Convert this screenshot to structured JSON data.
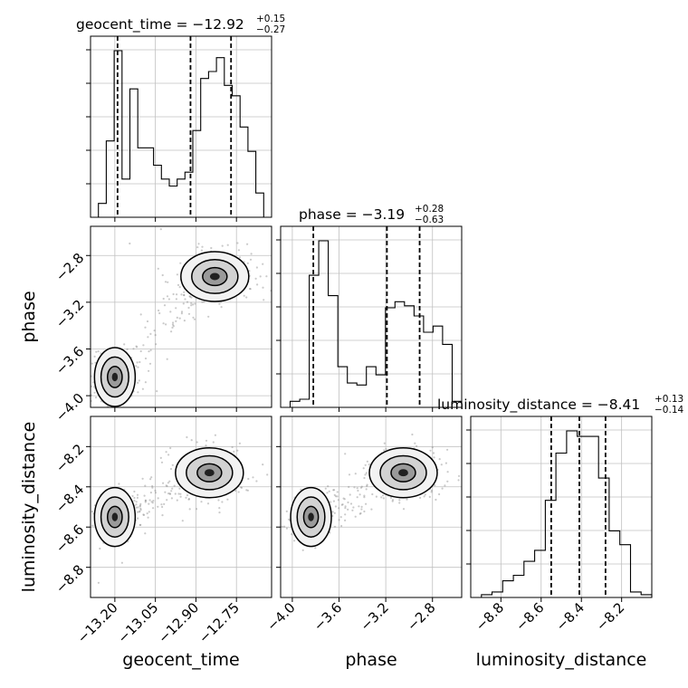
{
  "chart_data": {
    "type": "corner",
    "parameters": [
      "geocent_time",
      "phase",
      "luminosity_distance"
    ],
    "axes": {
      "geocent_time": {
        "range": [
          -13.29,
          -12.62
        ],
        "ticks": [
          -13.2,
          -13.05,
          -12.9,
          -12.75
        ],
        "tick_labels": [
          "−13.20",
          "−13.05",
          "−12.90",
          "−12.75"
        ]
      },
      "phase": {
        "range": [
          -4.1,
          -2.55
        ],
        "ticks": [
          -4.0,
          -3.6,
          -3.2,
          -2.8
        ],
        "tick_labels": [
          "−4.0",
          "−3.6",
          "−3.2",
          "−2.8"
        ]
      },
      "luminosity_distance": {
        "range": [
          -8.95,
          -8.05
        ],
        "ticks": [
          -8.8,
          -8.6,
          -8.4,
          -8.2
        ],
        "tick_labels": [
          "−8.8",
          "−8.6",
          "−8.4",
          "−8.2"
        ]
      }
    },
    "titles": [
      {
        "param": "geocent_time",
        "main": "geocent_time = −12.92",
        "sup": "+0.15",
        "sub": "−0.27"
      },
      {
        "param": "phase",
        "main": "phase = −3.19",
        "sup": "+0.28",
        "sub": "−0.63"
      },
      {
        "param": "luminosity_distance",
        "main": "luminosity_distance = −8.41",
        "sup": "+0.13",
        "sub": "−0.14"
      }
    ],
    "quantiles": {
      "geocent_time": [
        -13.19,
        -12.92,
        -12.77
      ],
      "phase": [
        -3.82,
        -3.19,
        -2.91
      ],
      "luminosity_distance": [
        -8.55,
        -8.41,
        -8.28
      ]
    },
    "histograms": {
      "geocent_time": {
        "range": [
          -13.29,
          -12.62
        ],
        "counts": [
          0,
          4,
          22,
          48,
          11,
          37,
          20,
          20,
          15,
          11,
          9,
          11,
          13,
          25,
          40,
          42,
          46,
          38,
          35,
          26,
          19,
          7,
          0
        ]
      },
      "phase": {
        "range": [
          -4.1,
          -2.55
        ],
        "counts": [
          0,
          3,
          4,
          65,
          82,
          55,
          20,
          12,
          11,
          20,
          16,
          49,
          52,
          50,
          45,
          37,
          40,
          31,
          3
        ]
      },
      "luminosity_distance": {
        "range": [
          -8.95,
          -8.05
        ],
        "counts": [
          0,
          1,
          2,
          6,
          8,
          13,
          17,
          35,
          52,
          60,
          58,
          58,
          43,
          24,
          19,
          2,
          1
        ]
      }
    },
    "scatter_2d": [
      {
        "x": "geocent_time",
        "y": "phase",
        "modes": [
          {
            "cx": -13.2,
            "cy": -3.84
          },
          {
            "cx": -12.83,
            "cy": -2.98
          }
        ]
      },
      {
        "x": "geocent_time",
        "y": "luminosity_distance",
        "modes": [
          {
            "cx": -13.2,
            "cy": -8.55
          },
          {
            "cx": -12.85,
            "cy": -8.33
          }
        ]
      },
      {
        "x": "phase",
        "y": "luminosity_distance",
        "modes": [
          {
            "cx": -3.84,
            "cy": -8.55
          },
          {
            "cx": -3.05,
            "cy": -8.33
          }
        ]
      }
    ],
    "xlabel": [
      "geocent_time",
      "phase",
      "luminosity_distance"
    ],
    "ylabel": [
      "phase",
      "luminosity_distance"
    ],
    "grid": true
  }
}
